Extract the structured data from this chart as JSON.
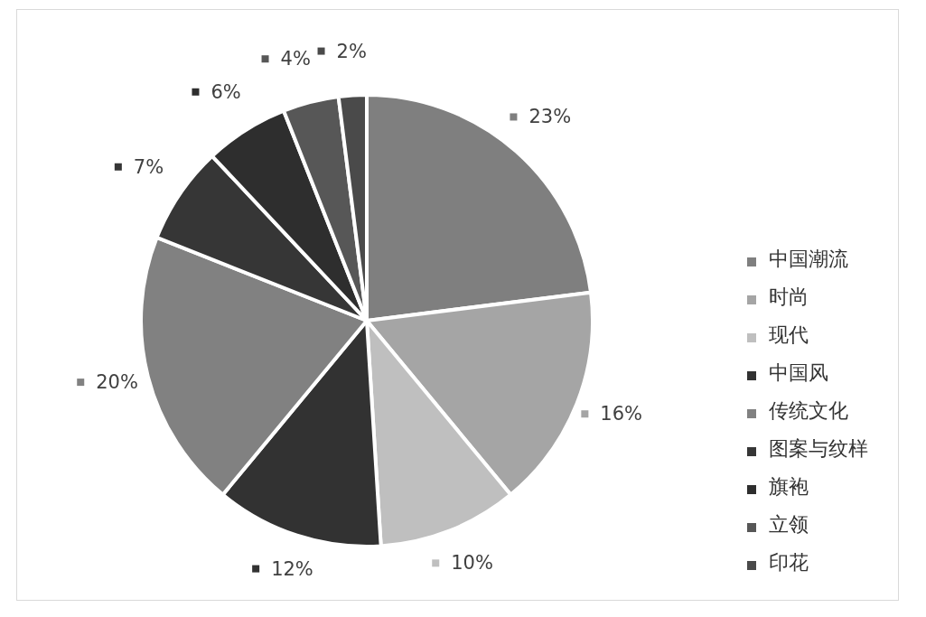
{
  "chart_data": {
    "type": "pie",
    "categories": [
      "中国潮流",
      "时尚",
      "现代",
      "中国风",
      "传统文化",
      "图案与纹样",
      "旗袍",
      "立领",
      "印花"
    ],
    "values": [
      23,
      16,
      10,
      12,
      20,
      7,
      6,
      4,
      2
    ],
    "colors": [
      "#7f7f7f",
      "#a5a5a5",
      "#bfbfbf",
      "#323232",
      "#818181",
      "#363636",
      "#2e2e2e",
      "#575757",
      "#4a4a4a"
    ],
    "value_labels": [
      "23%",
      "16%",
      "10%",
      "12%",
      "20%",
      "7%",
      "6%",
      "4%",
      "2%"
    ],
    "legend": "right"
  }
}
